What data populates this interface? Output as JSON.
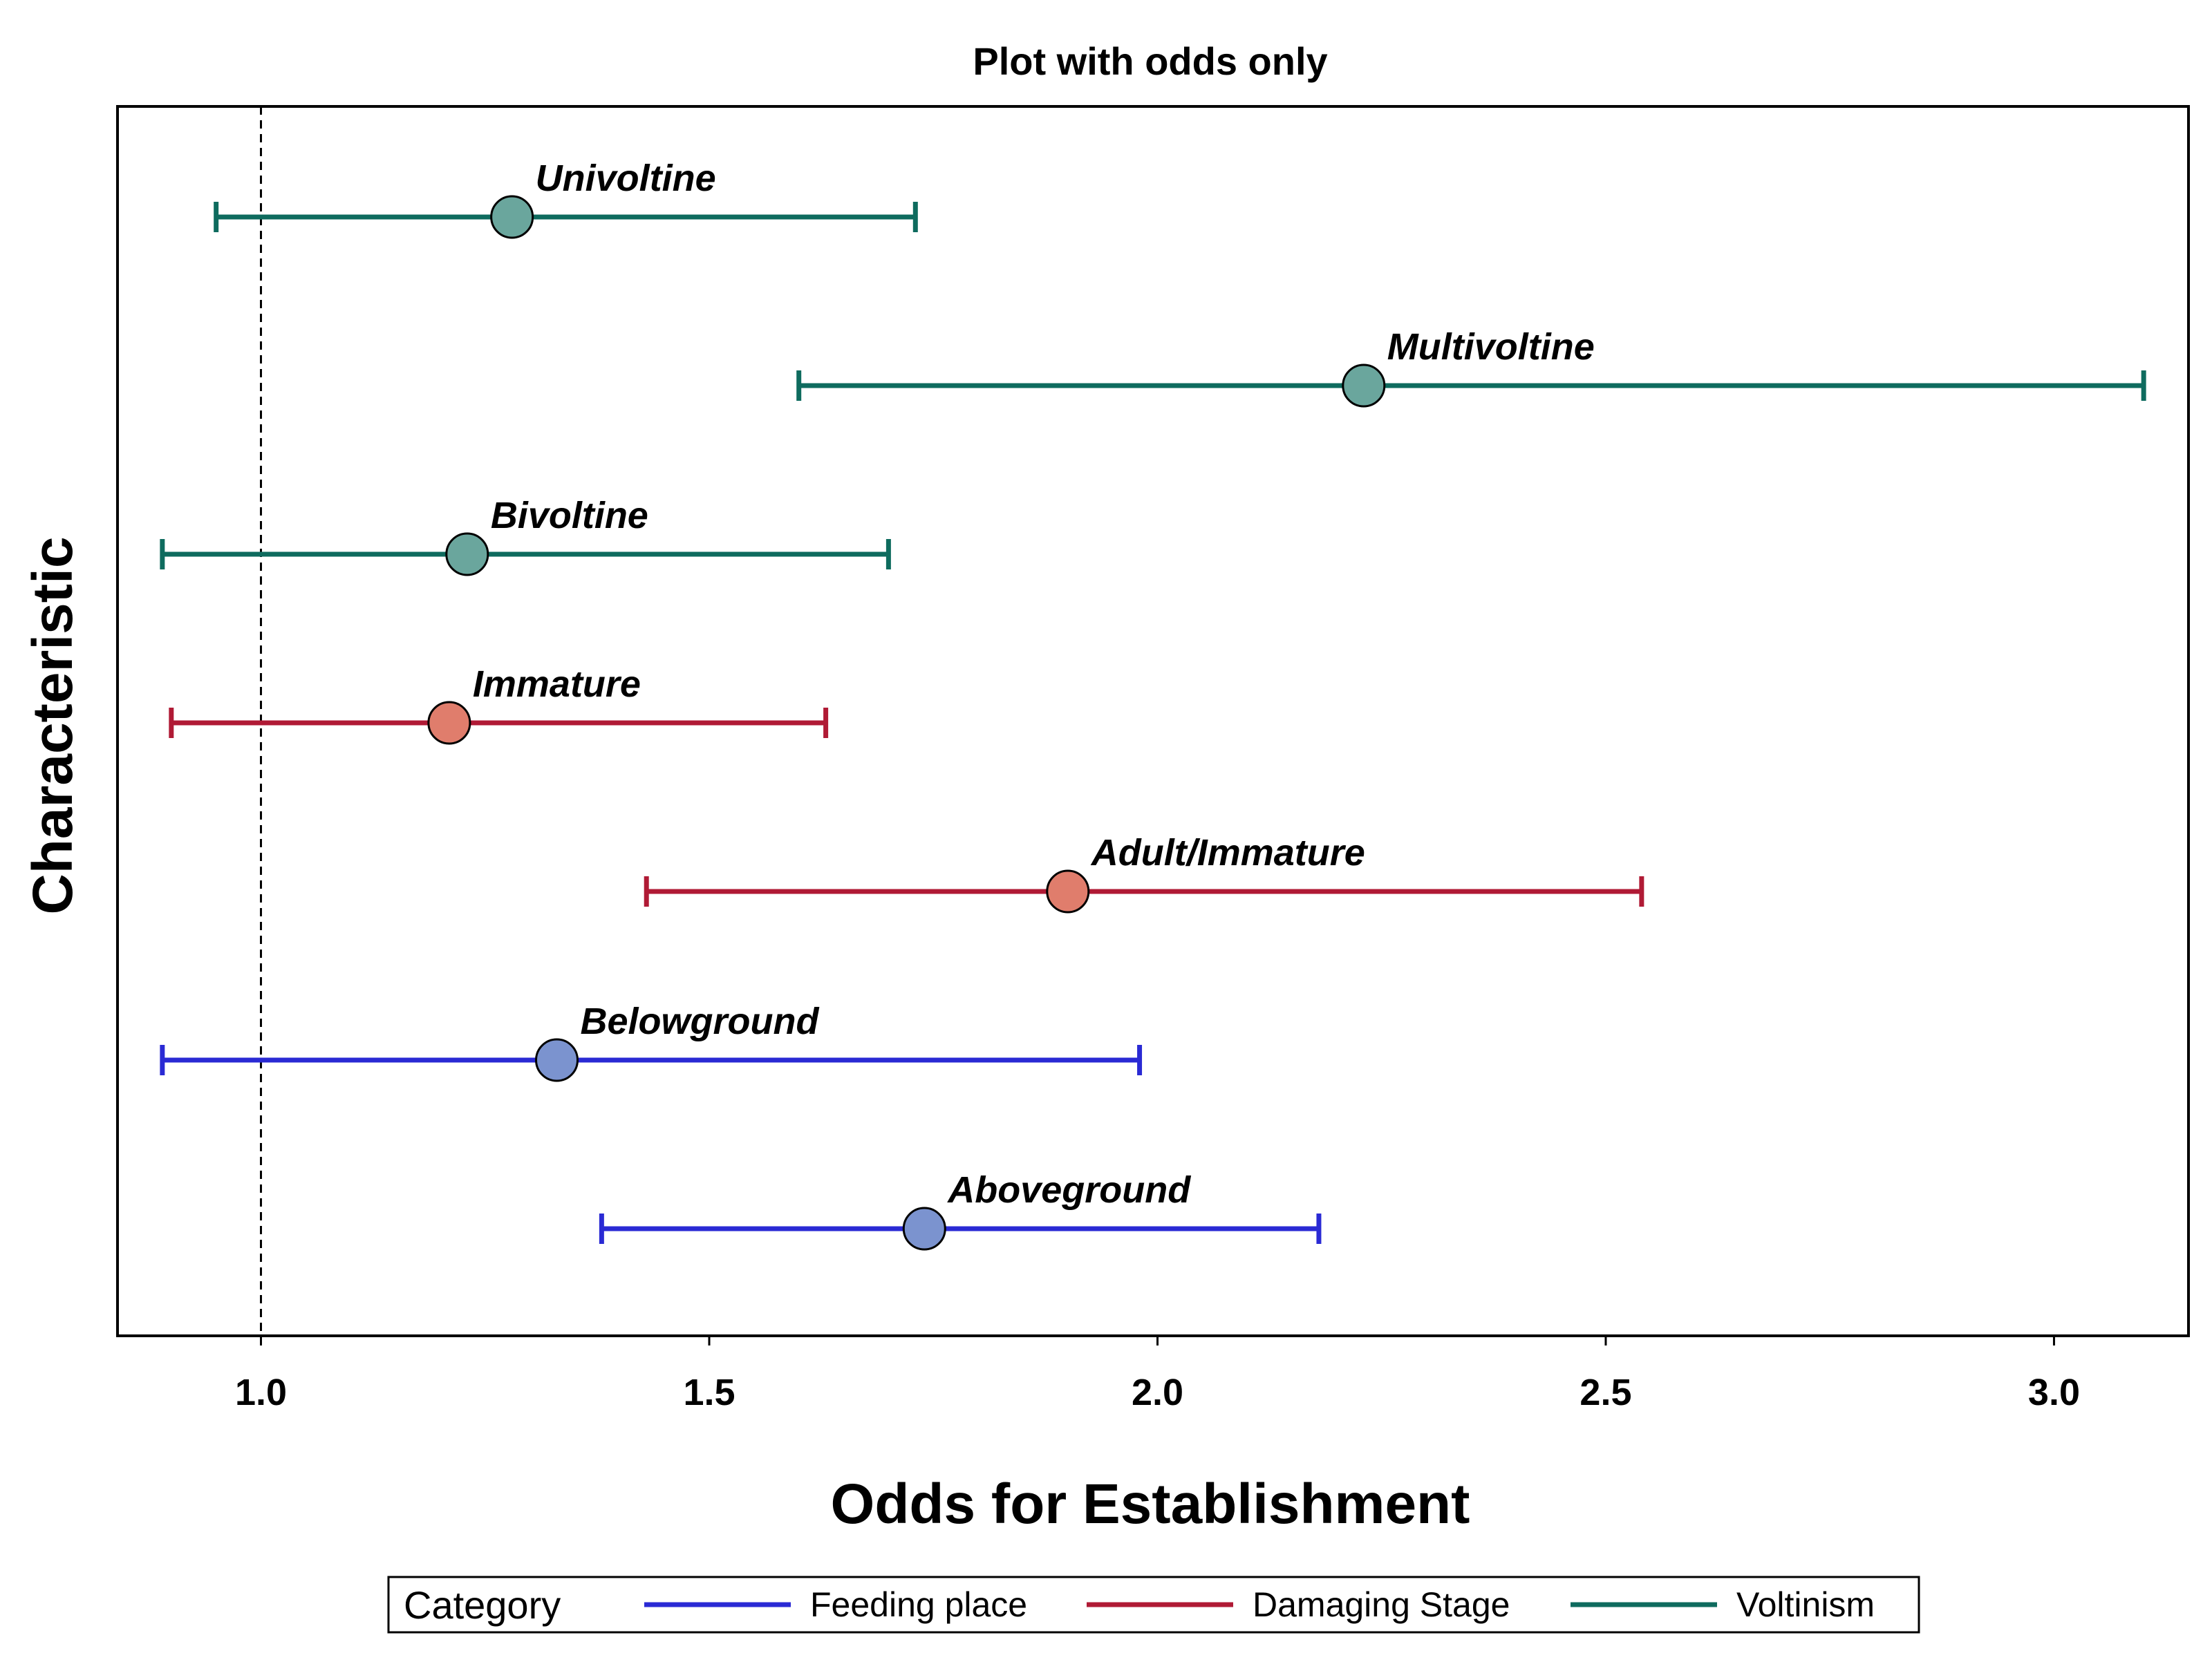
{
  "chart_data": {
    "type": "forest",
    "title": "Plot with odds only",
    "xlabel": "Odds for Establishment",
    "ylabel": "Characteristic",
    "xlim": [
      0.84,
      3.15
    ],
    "xticks": [
      1.0,
      1.5,
      2.0,
      2.5,
      3.0
    ],
    "xtick_labels": [
      "1.0",
      "1.5",
      "2.0",
      "2.5",
      "3.0"
    ],
    "reference_line": 1.0,
    "grid": false,
    "legend": {
      "title": "Category",
      "placement": "bottom",
      "entries": [
        {
          "name": "Feeding place",
          "color": "#2a2ad4"
        },
        {
          "name": "Damaging Stage",
          "color": "#b01a35"
        },
        {
          "name": "Voltinism",
          "color": "#0e6b5e"
        }
      ]
    },
    "series": [
      {
        "name": "Voltinism",
        "line_color": "#0e6b5e",
        "marker_color": "#6aa69d",
        "points": [
          {
            "label": "Univoltine",
            "odds": 1.28,
            "lower": 0.95,
            "upper": 1.73
          },
          {
            "label": "Multivoltine",
            "odds": 2.23,
            "lower": 1.6,
            "upper": 3.1
          },
          {
            "label": "Bivoltine",
            "odds": 1.23,
            "lower": 0.89,
            "upper": 1.7
          }
        ]
      },
      {
        "name": "Damaging Stage",
        "line_color": "#b01a35",
        "marker_color": "#e07d6c",
        "points": [
          {
            "label": "Immature",
            "odds": 1.21,
            "lower": 0.9,
            "upper": 1.63
          },
          {
            "label": "Adult/Immature",
            "odds": 1.9,
            "lower": 1.43,
            "upper": 2.54
          }
        ]
      },
      {
        "name": "Feeding place",
        "line_color": "#2a2ad4",
        "marker_color": "#7b93cf",
        "points": [
          {
            "label": "Belowground",
            "odds": 1.33,
            "lower": 0.89,
            "upper": 1.98
          },
          {
            "label": "Aboveground",
            "odds": 1.74,
            "lower": 1.38,
            "upper": 2.18
          }
        ]
      }
    ]
  }
}
